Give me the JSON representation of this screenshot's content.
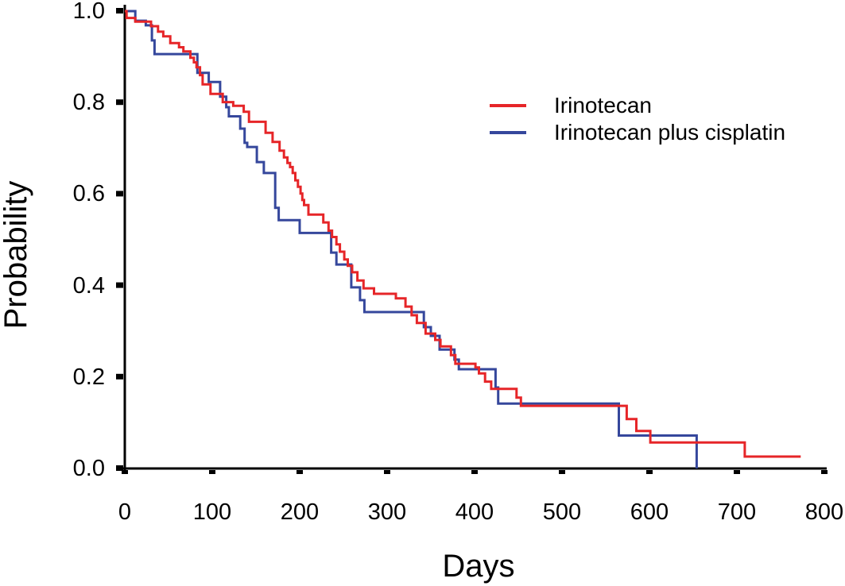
{
  "chart_data": {
    "type": "line",
    "subtype": "kaplan-meier-step-curves",
    "title": "",
    "xlabel": "Days",
    "ylabel": "Probability",
    "xlim": [
      0,
      800
    ],
    "ylim": [
      0.0,
      1.0
    ],
    "grid": "off",
    "legend_position": "upper-right-inside",
    "axis_color": "#000000",
    "x_ticks": [
      "0",
      "100",
      "200",
      "300",
      "400",
      "500",
      "600",
      "700",
      "800"
    ],
    "x_tick_values": [
      0,
      100,
      200,
      300,
      400,
      500,
      600,
      700,
      800
    ],
    "y_ticks": [
      "1.0",
      "0.8",
      "0.6",
      "0.4",
      "0.2",
      "0.0"
    ],
    "y_tick_values": [
      1.0,
      0.8,
      0.6,
      0.4,
      0.2,
      0.0
    ],
    "series": [
      {
        "name": "Irinotecan",
        "color": "#e62528",
        "end_day": 773,
        "points": [
          [
            0,
            1.0
          ],
          [
            2,
            0.985
          ],
          [
            12,
            0.977
          ],
          [
            30,
            0.967
          ],
          [
            38,
            0.955
          ],
          [
            44,
            0.945
          ],
          [
            52,
            0.93
          ],
          [
            62,
            0.921
          ],
          [
            67,
            0.912
          ],
          [
            75,
            0.898
          ],
          [
            79,
            0.888
          ],
          [
            82,
            0.877
          ],
          [
            86,
            0.86
          ],
          [
            89,
            0.84
          ],
          [
            98,
            0.819
          ],
          [
            112,
            0.801
          ],
          [
            124,
            0.793
          ],
          [
            136,
            0.78
          ],
          [
            142,
            0.758
          ],
          [
            161,
            0.734
          ],
          [
            169,
            0.714
          ],
          [
            177,
            0.695
          ],
          [
            182,
            0.68
          ],
          [
            186,
            0.668
          ],
          [
            189,
            0.659
          ],
          [
            192,
            0.646
          ],
          [
            195,
            0.63
          ],
          [
            198,
            0.616
          ],
          [
            201,
            0.601
          ],
          [
            203,
            0.587
          ],
          [
            205,
            0.576
          ],
          [
            210,
            0.555
          ],
          [
            227,
            0.538
          ],
          [
            233,
            0.52
          ],
          [
            237,
            0.506
          ],
          [
            242,
            0.49
          ],
          [
            246,
            0.474
          ],
          [
            251,
            0.457
          ],
          [
            255,
            0.443
          ],
          [
            260,
            0.429
          ],
          [
            266,
            0.411
          ],
          [
            273,
            0.394
          ],
          [
            285,
            0.382
          ],
          [
            310,
            0.372
          ],
          [
            321,
            0.354
          ],
          [
            328,
            0.335
          ],
          [
            334,
            0.318
          ],
          [
            344,
            0.295
          ],
          [
            355,
            0.281
          ],
          [
            361,
            0.267
          ],
          [
            373,
            0.248
          ],
          [
            378,
            0.229
          ],
          [
            401,
            0.221
          ],
          [
            405,
            0.208
          ],
          [
            412,
            0.19
          ],
          [
            419,
            0.174
          ],
          [
            448,
            0.155
          ],
          [
            453,
            0.137
          ],
          [
            574,
            0.108
          ],
          [
            585,
            0.082
          ],
          [
            601,
            0.057
          ],
          [
            709,
            0.026
          ]
        ]
      },
      {
        "name": "Irinotecan plus cisplatin",
        "color": "#35479c",
        "end_day": 654,
        "points": [
          [
            0,
            1.0
          ],
          [
            12,
            0.979
          ],
          [
            24,
            0.969
          ],
          [
            31,
            0.936
          ],
          [
            34,
            0.906
          ],
          [
            83,
            0.865
          ],
          [
            96,
            0.845
          ],
          [
            109,
            0.813
          ],
          [
            116,
            0.79
          ],
          [
            119,
            0.77
          ],
          [
            132,
            0.743
          ],
          [
            137,
            0.712
          ],
          [
            140,
            0.703
          ],
          [
            151,
            0.67
          ],
          [
            159,
            0.646
          ],
          [
            172,
            0.57
          ],
          [
            176,
            0.543
          ],
          [
            200,
            0.515
          ],
          [
            236,
            0.472
          ],
          [
            242,
            0.446
          ],
          [
            259,
            0.396
          ],
          [
            269,
            0.368
          ],
          [
            274,
            0.342
          ],
          [
            342,
            0.309
          ],
          [
            350,
            0.29
          ],
          [
            360,
            0.26
          ],
          [
            377,
            0.238
          ],
          [
            382,
            0.217
          ],
          [
            424,
            0.177
          ],
          [
            427,
            0.142
          ],
          [
            565,
            0.072
          ],
          [
            654,
            0.0
          ]
        ]
      }
    ]
  }
}
